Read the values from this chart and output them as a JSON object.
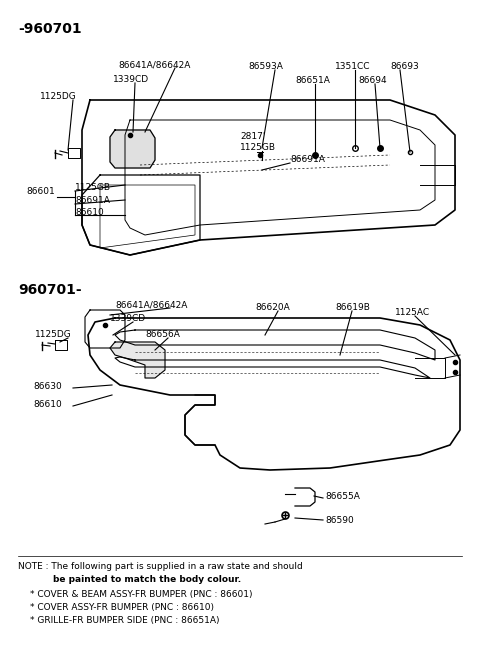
{
  "bg_color": "#ffffff",
  "title1": "-960701",
  "title2": "960701-",
  "fig_width": 4.8,
  "fig_height": 6.57,
  "note_lines": [
    "NOTE : The following part is supplied in a raw state and should",
    "          be painted to match the body colour.",
    "   * COVER & BEAM ASSY-FR BUMPER (PNC : 86601)",
    "   * COVER ASSY-FR BUMPER (PNC : 86610)",
    "   * GRILLE-FR BUMPER SIDE (PNC : 86651A)"
  ]
}
